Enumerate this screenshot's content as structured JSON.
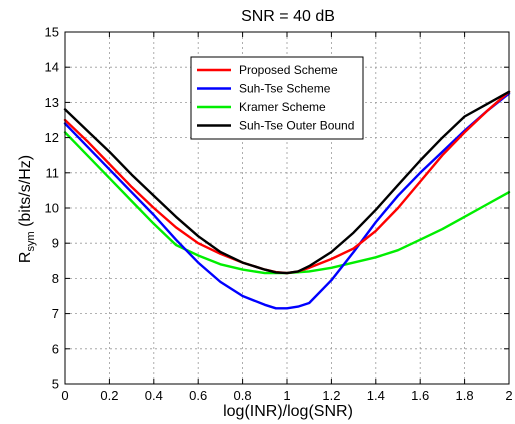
{
  "chart_data": {
    "type": "line",
    "title": "SNR = 40 dB",
    "xlabel": "log(INR)/log(SNR)",
    "ylabel": {
      "main": "R",
      "sub": "sym",
      "rest": " (bits/s/Hz)"
    },
    "xlim": [
      0,
      2
    ],
    "ylim": [
      5,
      15
    ],
    "xticks": [
      0,
      0.2,
      0.4,
      0.6,
      0.8,
      1,
      1.2,
      1.4,
      1.6,
      1.8,
      2
    ],
    "xtick_labels": [
      "0",
      "0.2",
      "0.4",
      "0.6",
      "0.8",
      "1",
      "1.2",
      "1.4",
      "1.6",
      "1.8",
      "2"
    ],
    "yticks": [
      5,
      6,
      7,
      8,
      9,
      10,
      11,
      12,
      13,
      14,
      15
    ],
    "ytick_labels": [
      "5",
      "6",
      "7",
      "8",
      "9",
      "10",
      "11",
      "12",
      "13",
      "14",
      "15"
    ],
    "grid": true,
    "legend_position": "top-center",
    "series": [
      {
        "name": "Proposed Scheme",
        "color": "#ff0000",
        "x": [
          0,
          0.1,
          0.2,
          0.3,
          0.4,
          0.5,
          0.6,
          0.7,
          0.8,
          0.9,
          0.95,
          1.0,
          1.05,
          1.1,
          1.2,
          1.3,
          1.4,
          1.5,
          1.6,
          1.7,
          1.8,
          1.9,
          2.0
        ],
        "y": [
          12.5,
          11.9,
          11.25,
          10.6,
          10.0,
          9.45,
          9.0,
          8.7,
          8.45,
          8.25,
          8.18,
          8.15,
          8.2,
          8.3,
          8.55,
          8.85,
          9.35,
          10.0,
          10.75,
          11.5,
          12.15,
          12.75,
          13.3
        ]
      },
      {
        "name": "Suh-Tse Scheme",
        "color": "#0000ff",
        "x": [
          0,
          0.1,
          0.2,
          0.3,
          0.4,
          0.5,
          0.6,
          0.7,
          0.8,
          0.9,
          0.95,
          1.0,
          1.05,
          1.1,
          1.2,
          1.3,
          1.4,
          1.5,
          1.6,
          1.7,
          1.8,
          1.9,
          2.0
        ],
        "y": [
          12.4,
          11.75,
          11.1,
          10.45,
          9.8,
          9.1,
          8.45,
          7.9,
          7.5,
          7.25,
          7.15,
          7.15,
          7.2,
          7.3,
          7.95,
          8.75,
          9.6,
          10.35,
          11.0,
          11.6,
          12.2,
          12.75,
          13.25
        ]
      },
      {
        "name": "Kramer Scheme",
        "color": "#00ee00",
        "x": [
          0,
          0.1,
          0.2,
          0.3,
          0.4,
          0.5,
          0.6,
          0.7,
          0.8,
          0.9,
          1.0,
          1.1,
          1.2,
          1.3,
          1.4,
          1.5,
          1.6,
          1.7,
          1.8,
          1.9,
          2.0
        ],
        "y": [
          12.15,
          11.5,
          10.85,
          10.2,
          9.55,
          8.95,
          8.65,
          8.4,
          8.25,
          8.15,
          8.15,
          8.2,
          8.3,
          8.45,
          8.6,
          8.8,
          9.1,
          9.4,
          9.75,
          10.1,
          10.45
        ]
      },
      {
        "name": "Suh-Tse Outer Bound",
        "color": "#000000",
        "x": [
          0,
          0.1,
          0.2,
          0.3,
          0.4,
          0.5,
          0.6,
          0.7,
          0.8,
          0.9,
          0.95,
          1.0,
          1.05,
          1.1,
          1.2,
          1.3,
          1.4,
          1.5,
          1.6,
          1.7,
          1.8,
          1.9,
          2.0
        ],
        "y": [
          12.8,
          12.2,
          11.6,
          10.95,
          10.35,
          9.75,
          9.2,
          8.75,
          8.45,
          8.25,
          8.17,
          8.15,
          8.2,
          8.35,
          8.75,
          9.3,
          9.95,
          10.65,
          11.35,
          12.0,
          12.6,
          12.95,
          13.3
        ]
      }
    ]
  }
}
